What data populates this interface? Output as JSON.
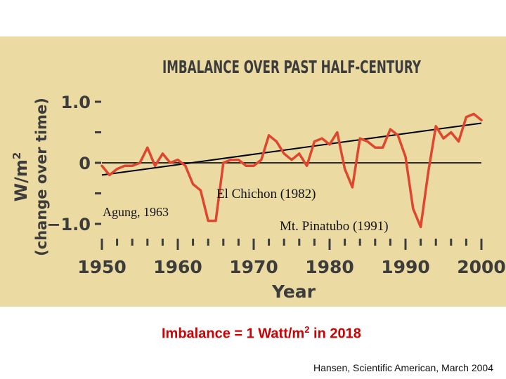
{
  "chart_data": {
    "type": "line",
    "title": "IMBALANCE OVER PAST HALF-CENTURY",
    "xlabel": "Year",
    "ylabel_main": "W/m",
    "ylabel_sup": "2",
    "ylabel_sub": "(change over time)",
    "xlim": [
      1950,
      2000
    ],
    "ylim": [
      -1.25,
      1.15
    ],
    "x_ticks": [
      1950,
      1960,
      1970,
      1980,
      1990,
      2000
    ],
    "x_tick_labels": [
      "1950",
      "1960",
      "1970",
      "1980",
      "1990",
      "2000"
    ],
    "y_ticks": [
      1.0,
      0,
      -1.0
    ],
    "y_tick_labels": [
      "1.0",
      "0",
      "−1.0"
    ],
    "zero_line": true,
    "line_color": "#e0452e",
    "trend_color": "#000000",
    "series": [
      {
        "x": [
          1950,
          1951,
          1952,
          1953,
          1954,
          1955,
          1956,
          1957,
          1958,
          1959,
          1960,
          1961,
          1962,
          1963,
          1964,
          1965,
          1966,
          1967,
          1968,
          1969,
          1970,
          1971,
          1972,
          1973,
          1974,
          1975,
          1976,
          1977,
          1978,
          1979,
          1980,
          1981,
          1982,
          1983,
          1984,
          1985,
          1986,
          1987,
          1988,
          1989,
          1990,
          1991,
          1992,
          1993,
          1994,
          1995,
          1996,
          1997,
          1998,
          1999,
          2000
        ],
        "values": [
          -0.05,
          -0.2,
          -0.1,
          -0.05,
          -0.05,
          0.0,
          0.25,
          -0.05,
          0.15,
          0.0,
          0.05,
          -0.05,
          -0.35,
          -0.45,
          -0.95,
          -0.95,
          0.0,
          0.05,
          0.05,
          -0.05,
          -0.05,
          0.05,
          0.45,
          0.35,
          0.15,
          0.05,
          0.15,
          -0.05,
          0.35,
          0.4,
          0.3,
          0.5,
          -0.1,
          -0.4,
          0.4,
          0.35,
          0.25,
          0.25,
          0.55,
          0.45,
          0.1,
          -0.75,
          -1.05,
          -0.15,
          0.6,
          0.4,
          0.5,
          0.35,
          0.75,
          0.8,
          0.7
        ]
      }
    ],
    "trend": {
      "x": [
        1950,
        2000
      ],
      "values": [
        -0.2,
        0.65
      ]
    },
    "annotations": [
      {
        "text": "Agung, 1963",
        "year": 1963
      },
      {
        "text": "El Chichon (1982)",
        "year": 1982
      },
      {
        "text": "Mt. Pinatubo (1991)",
        "year": 1991
      }
    ]
  },
  "footer": {
    "equation_prefix": "Imbalance = 1 Watt/m",
    "equation_sup": "2",
    "equation_suffix": " in 2018",
    "source": "Hansen, Scientific American, March 2004"
  }
}
